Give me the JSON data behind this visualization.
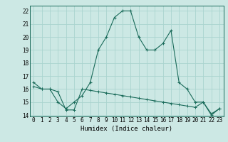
{
  "title": "",
  "xlabel": "Humidex (Indice chaleur)",
  "x": [
    0,
    1,
    2,
    3,
    4,
    5,
    6,
    7,
    8,
    9,
    10,
    11,
    12,
    13,
    14,
    15,
    16,
    17,
    18,
    19,
    20,
    21,
    22,
    23
  ],
  "line1": [
    16.5,
    16.0,
    16.0,
    15.0,
    14.5,
    15.0,
    15.5,
    16.5,
    19.0,
    20.0,
    21.5,
    22.0,
    22.0,
    20.0,
    19.0,
    19.0,
    19.5,
    20.5,
    16.5,
    16.0,
    15.0,
    15.0,
    14.0,
    14.5
  ],
  "line2": [
    16.2,
    16.0,
    16.0,
    15.8,
    14.4,
    14.4,
    16.0,
    15.9,
    15.8,
    15.7,
    15.6,
    15.5,
    15.4,
    15.3,
    15.2,
    15.1,
    15.0,
    14.9,
    14.8,
    14.7,
    14.6,
    15.0,
    14.1,
    14.5
  ],
  "line_color": "#1a6b5a",
  "bg_color": "#cce8e4",
  "grid_color": "#aad4cf",
  "ylim": [
    13.9,
    22.4
  ],
  "xlim": [
    -0.5,
    23.5
  ],
  "yticks": [
    14,
    15,
    16,
    17,
    18,
    19,
    20,
    21,
    22
  ],
  "xticks": [
    0,
    1,
    2,
    3,
    4,
    5,
    6,
    7,
    8,
    9,
    10,
    11,
    12,
    13,
    14,
    15,
    16,
    17,
    18,
    19,
    20,
    21,
    22,
    23
  ],
  "tick_fontsize": 5.5,
  "xlabel_fontsize": 6.5
}
